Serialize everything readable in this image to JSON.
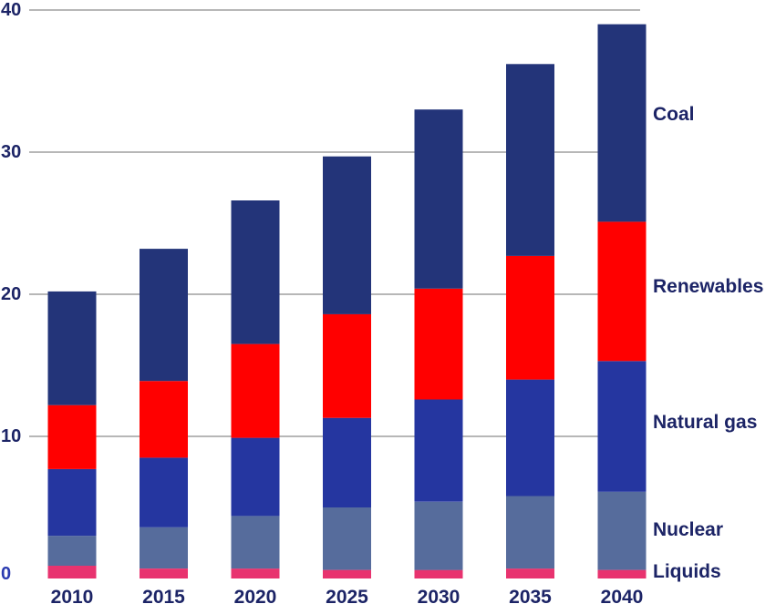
{
  "chart_data": {
    "type": "bar",
    "stacked": true,
    "categories": [
      "2010",
      "2015",
      "2020",
      "2025",
      "2030",
      "2035",
      "2040"
    ],
    "ylim": [
      0,
      40
    ],
    "yticks": [
      "0",
      "10",
      "20",
      "30",
      "40"
    ],
    "grid": true,
    "legend_placement": "right, labels beside the stacked segments",
    "series": [
      {
        "name": "Liquids",
        "color": "#e8336f",
        "values": [
          0.9,
          0.7,
          0.7,
          0.6,
          0.6,
          0.7,
          0.6
        ]
      },
      {
        "name": "Nuclear",
        "color": "#566c9c",
        "values": [
          2.1,
          2.9,
          3.7,
          4.4,
          4.8,
          5.1,
          5.5
        ]
      },
      {
        "name": "Natural gas",
        "color": "#2536a0",
        "values": [
          4.7,
          4.9,
          5.5,
          6.3,
          7.2,
          8.2,
          9.2
        ]
      },
      {
        "name": "Renewables",
        "color": "#ff0000",
        "values": [
          4.5,
          5.4,
          6.6,
          7.3,
          7.8,
          8.7,
          9.8
        ]
      },
      {
        "name": "Coal",
        "color": "#233479",
        "values": [
          8.0,
          9.3,
          10.1,
          11.1,
          12.6,
          13.5,
          13.9
        ]
      }
    ]
  }
}
